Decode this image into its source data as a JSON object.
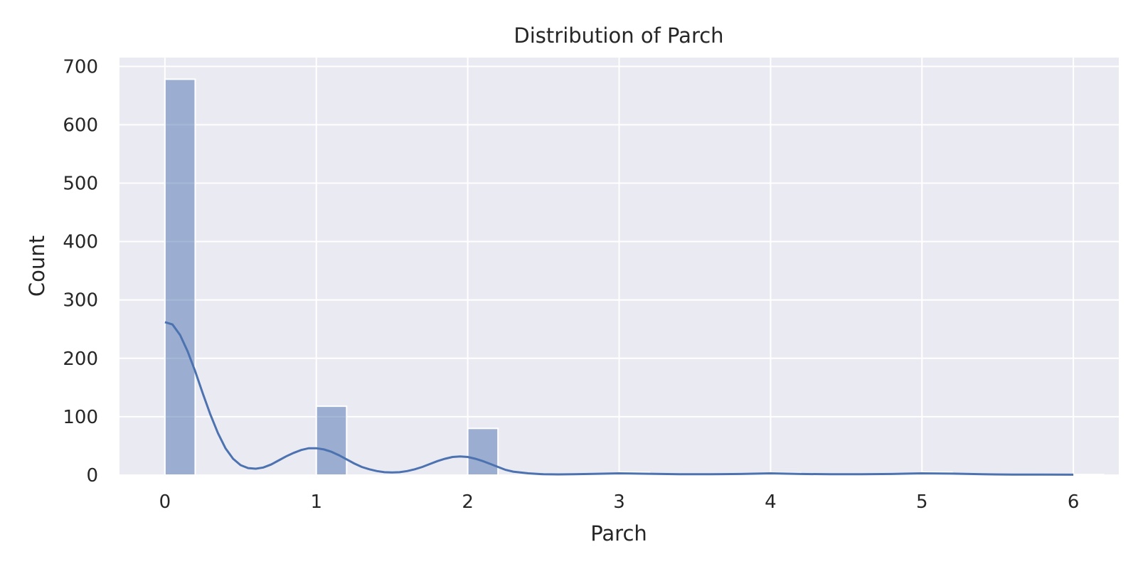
{
  "chart_data": {
    "type": "bar",
    "title": "Distribution of Parch",
    "xlabel": "Parch",
    "ylabel": "Count",
    "xlim": [
      -0.3,
      6.3
    ],
    "ylim": [
      0,
      715
    ],
    "xticks": [
      0,
      1,
      2,
      3,
      4,
      5,
      6
    ],
    "yticks": [
      0,
      100,
      200,
      300,
      400,
      500,
      600,
      700
    ],
    "grid": true,
    "bin_width": 0.2,
    "bins": [
      {
        "x0": 0,
        "count": 678
      },
      {
        "x0": 1,
        "count": 118
      },
      {
        "x0": 2,
        "count": 80
      },
      {
        "x0": 3,
        "count": 5
      },
      {
        "x0": 4,
        "count": 4
      },
      {
        "x0": 5,
        "count": 5
      },
      {
        "x0": 6,
        "count": 1
      }
    ],
    "kde": {
      "x": [
        0,
        0.05,
        0.1,
        0.15,
        0.2,
        0.25,
        0.3,
        0.35,
        0.4,
        0.45,
        0.5,
        0.55,
        0.6,
        0.65,
        0.7,
        0.75,
        0.8,
        0.85,
        0.9,
        0.95,
        1.0,
        1.05,
        1.1,
        1.15,
        1.2,
        1.25,
        1.3,
        1.35,
        1.4,
        1.45,
        1.5,
        1.55,
        1.6,
        1.65,
        1.7,
        1.75,
        1.8,
        1.85,
        1.9,
        1.95,
        2.0,
        2.05,
        2.1,
        2.15,
        2.2,
        2.25,
        2.3,
        2.4,
        2.5,
        2.6,
        2.7,
        2.8,
        3.0,
        3.2,
        3.4,
        3.6,
        3.8,
        4.0,
        4.2,
        4.4,
        4.6,
        4.8,
        5.0,
        5.2,
        5.4,
        5.6,
        5.8,
        6.0
      ],
      "y": [
        262,
        258,
        240,
        212,
        178,
        140,
        104,
        72,
        46,
        28,
        17,
        12,
        11,
        13,
        18,
        25,
        32,
        38,
        43,
        46,
        46,
        44,
        40,
        34,
        27,
        20,
        14,
        10,
        7,
        5,
        4.5,
        5,
        7,
        10,
        14,
        19,
        24,
        28,
        31,
        32,
        31,
        28,
        24,
        19,
        14,
        9,
        6,
        3,
        1.5,
        1.2,
        1.5,
        2,
        3,
        2.3,
        1.5,
        1.5,
        2,
        3,
        2,
        1.5,
        1.5,
        2,
        3,
        2.5,
        1.5,
        1,
        0.8,
        0.7
      ]
    }
  }
}
